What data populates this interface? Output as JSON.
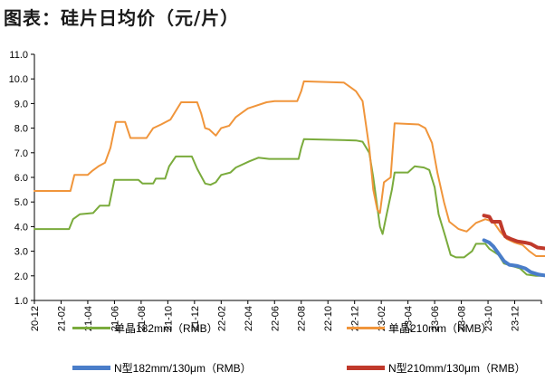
{
  "title": "图表：硅片日均价（元/片）",
  "chart_data": {
    "type": "line",
    "ylim": [
      1.0,
      11.0
    ],
    "yticks": [
      "1.0",
      "2.0",
      "3.0",
      "4.0",
      "5.0",
      "6.0",
      "7.0",
      "8.0",
      "9.0",
      "10.0",
      "11.0"
    ],
    "xticks": [
      "20-12",
      "21-02",
      "21-04",
      "21-06",
      "21-08",
      "21-10",
      "21-12",
      "22-02",
      "22-04",
      "22-06",
      "22-08",
      "22-10",
      "22-12",
      "23-02",
      "23-04",
      "23-06",
      "23-08",
      "23-10",
      "23-12"
    ],
    "series": [
      {
        "name": "单晶182mm（RMB）",
        "color": "#7aab3c",
        "width": 2,
        "points": [
          [
            0,
            3.9
          ],
          [
            1.3,
            3.9
          ],
          [
            1.45,
            4.3
          ],
          [
            1.7,
            4.5
          ],
          [
            2.2,
            4.55
          ],
          [
            2.45,
            4.85
          ],
          [
            2.8,
            4.85
          ],
          [
            3.0,
            5.9
          ],
          [
            3.9,
            5.9
          ],
          [
            4.05,
            5.75
          ],
          [
            4.45,
            5.75
          ],
          [
            4.55,
            5.95
          ],
          [
            4.9,
            5.95
          ],
          [
            5.05,
            6.45
          ],
          [
            5.3,
            6.85
          ],
          [
            5.9,
            6.85
          ],
          [
            6.1,
            6.35
          ],
          [
            6.4,
            5.75
          ],
          [
            6.6,
            5.7
          ],
          [
            6.8,
            5.8
          ],
          [
            7.0,
            6.1
          ],
          [
            7.35,
            6.2
          ],
          [
            7.55,
            6.4
          ],
          [
            8.05,
            6.65
          ],
          [
            8.4,
            6.8
          ],
          [
            8.8,
            6.75
          ],
          [
            9.9,
            6.75
          ],
          [
            10.0,
            7.2
          ],
          [
            10.1,
            7.55
          ],
          [
            12.05,
            7.5
          ],
          [
            12.3,
            7.45
          ],
          [
            12.55,
            7.0
          ],
          [
            12.7,
            6.0
          ],
          [
            12.95,
            4.0
          ],
          [
            13.05,
            3.7
          ],
          [
            13.2,
            4.5
          ],
          [
            13.4,
            5.5
          ],
          [
            13.5,
            6.2
          ],
          [
            14.0,
            6.2
          ],
          [
            14.25,
            6.45
          ],
          [
            14.6,
            6.4
          ],
          [
            14.8,
            6.3
          ],
          [
            15.0,
            5.6
          ],
          [
            15.15,
            4.5
          ],
          [
            15.4,
            3.6
          ],
          [
            15.6,
            2.85
          ],
          [
            15.8,
            2.75
          ],
          [
            16.1,
            2.75
          ],
          [
            16.4,
            3.0
          ],
          [
            16.55,
            3.3
          ],
          [
            16.9,
            3.3
          ],
          [
            17.05,
            3.1
          ],
          [
            17.4,
            2.85
          ],
          [
            17.6,
            2.5
          ],
          [
            17.9,
            2.4
          ],
          [
            18.2,
            2.3
          ],
          [
            18.45,
            2.05
          ],
          [
            18.8,
            2.0
          ],
          [
            19.25,
            2.0
          ]
        ]
      },
      {
        "name": "单晶210mm（RMB）",
        "color": "#f0953b",
        "width": 2,
        "points": [
          [
            0,
            5.45
          ],
          [
            1.35,
            5.45
          ],
          [
            1.5,
            6.1
          ],
          [
            2.0,
            6.1
          ],
          [
            2.15,
            6.25
          ],
          [
            2.4,
            6.45
          ],
          [
            2.65,
            6.6
          ],
          [
            2.85,
            7.2
          ],
          [
            3.05,
            8.25
          ],
          [
            3.4,
            8.25
          ],
          [
            3.6,
            7.6
          ],
          [
            4.2,
            7.6
          ],
          [
            4.45,
            8.0
          ],
          [
            4.75,
            8.15
          ],
          [
            5.1,
            8.35
          ],
          [
            5.5,
            9.05
          ],
          [
            6.1,
            9.05
          ],
          [
            6.25,
            8.6
          ],
          [
            6.4,
            8.0
          ],
          [
            6.55,
            7.95
          ],
          [
            6.8,
            7.7
          ],
          [
            7.0,
            8.0
          ],
          [
            7.3,
            8.1
          ],
          [
            7.55,
            8.45
          ],
          [
            8.0,
            8.8
          ],
          [
            8.7,
            9.05
          ],
          [
            9.0,
            9.1
          ],
          [
            9.85,
            9.1
          ],
          [
            10.0,
            9.5
          ],
          [
            10.1,
            9.9
          ],
          [
            11.6,
            9.85
          ],
          [
            11.8,
            9.7
          ],
          [
            12.05,
            9.5
          ],
          [
            12.3,
            9.1
          ],
          [
            12.55,
            7.2
          ],
          [
            12.7,
            5.5
          ],
          [
            12.85,
            4.7
          ],
          [
            12.95,
            4.55
          ],
          [
            13.1,
            5.8
          ],
          [
            13.35,
            6.0
          ],
          [
            13.5,
            8.2
          ],
          [
            14.4,
            8.15
          ],
          [
            14.65,
            8.0
          ],
          [
            14.9,
            7.4
          ],
          [
            15.1,
            6.2
          ],
          [
            15.35,
            5.0
          ],
          [
            15.55,
            4.2
          ],
          [
            15.9,
            3.9
          ],
          [
            16.2,
            3.8
          ],
          [
            16.55,
            4.15
          ],
          [
            16.9,
            4.3
          ],
          [
            17.2,
            4.2
          ],
          [
            17.45,
            3.8
          ],
          [
            17.7,
            3.5
          ],
          [
            18.0,
            3.35
          ],
          [
            18.3,
            3.25
          ],
          [
            18.55,
            3.0
          ],
          [
            18.8,
            2.8
          ],
          [
            19.25,
            2.8
          ]
        ]
      },
      {
        "name": "N型182mm/130μm（RMB）",
        "color": "#4a7dc9",
        "width": 4,
        "points": [
          [
            16.85,
            3.45
          ],
          [
            17.05,
            3.35
          ],
          [
            17.2,
            3.2
          ],
          [
            17.4,
            2.9
          ],
          [
            17.6,
            2.6
          ],
          [
            17.8,
            2.45
          ],
          [
            18.1,
            2.4
          ],
          [
            18.4,
            2.3
          ],
          [
            18.6,
            2.15
          ],
          [
            18.9,
            2.05
          ],
          [
            19.25,
            2.0
          ]
        ]
      },
      {
        "name": "N型210mm/130μm（RMB）",
        "color": "#c0392b",
        "width": 4,
        "points": [
          [
            16.85,
            4.45
          ],
          [
            17.05,
            4.4
          ],
          [
            17.15,
            4.2
          ],
          [
            17.45,
            4.2
          ],
          [
            17.55,
            3.85
          ],
          [
            17.65,
            3.6
          ],
          [
            17.85,
            3.5
          ],
          [
            18.1,
            3.4
          ],
          [
            18.4,
            3.35
          ],
          [
            18.6,
            3.3
          ],
          [
            18.85,
            3.15
          ],
          [
            19.25,
            3.1
          ]
        ]
      }
    ]
  },
  "legend": {
    "s1": "单晶182mm（RMB）",
    "s2": "单晶210mm（RMB）",
    "s3": "N型182mm/130μm（RMB）",
    "s4": "N型210mm/130μm（RMB）"
  }
}
